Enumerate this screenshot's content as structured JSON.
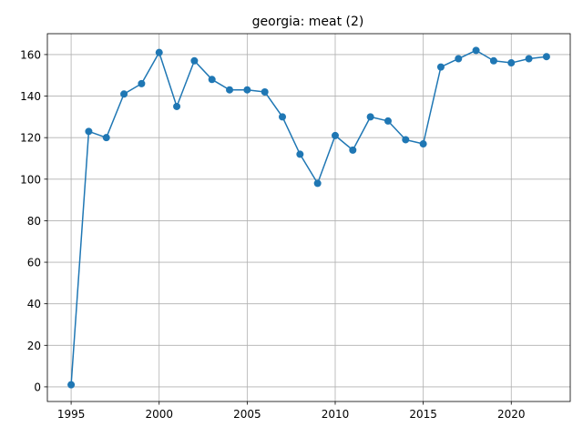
{
  "chart_data": {
    "type": "line",
    "title": "georgia: meat (2)",
    "xlabel": "",
    "ylabel": "",
    "xlim": [
      1993.65,
      2023.35
    ],
    "ylim": [
      -7.05,
      170.05
    ],
    "x_ticks": [
      1995,
      2000,
      2005,
      2010,
      2015,
      2020
    ],
    "y_ticks": [
      0,
      20,
      40,
      60,
      80,
      100,
      120,
      140,
      160
    ],
    "grid": true,
    "legend": "none",
    "colors": {
      "series": "#1f77b4",
      "grid": "#b0b0b0",
      "axis": "#000000"
    },
    "series": [
      {
        "x": [
          1995,
          1996,
          1997,
          1998,
          1999,
          2000,
          2001,
          2002,
          2003,
          2004,
          2005,
          2006,
          2007,
          2008,
          2009,
          2010,
          2011,
          2012,
          2013,
          2014,
          2015,
          2016,
          2017,
          2018,
          2019,
          2020,
          2021,
          2022
        ],
        "values": [
          1,
          123,
          120,
          141,
          146,
          161,
          135,
          157,
          148,
          143,
          143,
          142,
          130,
          112,
          98,
          121,
          114,
          130,
          128,
          119,
          117,
          154,
          158,
          162,
          157,
          156,
          158,
          159
        ]
      }
    ]
  }
}
